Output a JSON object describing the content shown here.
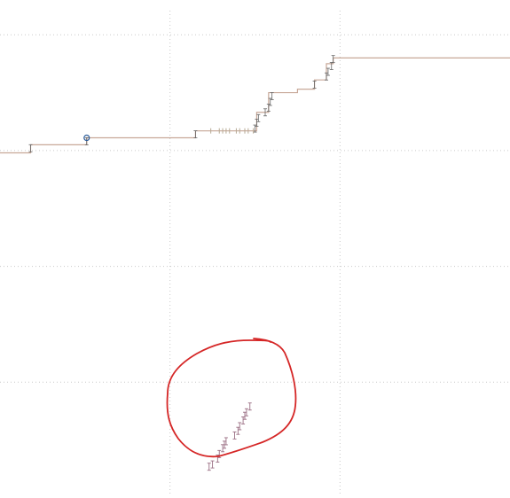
{
  "chart_data": {
    "type": "line",
    "title": "",
    "xlabel": "",
    "ylabel": "",
    "grid": true,
    "legend": "none",
    "x_gridlines": [
      1,
      2
    ],
    "y_gridlines": [
      1,
      2,
      3,
      4
    ],
    "xlim": [
      0,
      3
    ],
    "ylim": [
      0,
      4.3
    ],
    "series": [
      {
        "name": "step-series",
        "color": "#c8a898",
        "step_points": [
          [
            0.0,
            2.98
          ],
          [
            0.18,
            2.98
          ],
          [
            0.18,
            3.05
          ],
          [
            0.51,
            3.05
          ],
          [
            0.51,
            3.11
          ],
          [
            1.15,
            3.11
          ],
          [
            1.15,
            3.17
          ],
          [
            1.51,
            3.17
          ],
          [
            1.51,
            3.33
          ],
          [
            1.58,
            3.33
          ],
          [
            1.58,
            3.5
          ],
          [
            1.75,
            3.5
          ],
          [
            1.75,
            3.53
          ],
          [
            1.85,
            3.53
          ],
          [
            1.85,
            3.61
          ],
          [
            1.92,
            3.61
          ],
          [
            1.92,
            3.75
          ],
          [
            1.96,
            3.75
          ],
          [
            1.96,
            3.8
          ],
          [
            3.0,
            3.8
          ]
        ],
        "error_points": [
          [
            0.18,
            3.02
          ],
          [
            0.51,
            3.08
          ],
          [
            1.15,
            3.14
          ],
          [
            1.5,
            3.19
          ],
          [
            1.51,
            3.24
          ],
          [
            1.52,
            3.28
          ],
          [
            1.56,
            3.33
          ],
          [
            1.58,
            3.37
          ],
          [
            1.59,
            3.42
          ],
          [
            1.6,
            3.47
          ],
          [
            1.85,
            3.57
          ],
          [
            1.92,
            3.64
          ],
          [
            1.93,
            3.68
          ],
          [
            1.95,
            3.73
          ],
          [
            1.96,
            3.79
          ]
        ],
        "marker_point": [
          0.51,
          3.11
        ],
        "rug_x": [
          1.24,
          1.29,
          1.31,
          1.33,
          1.35,
          1.39,
          1.41,
          1.44,
          1.46,
          1.49
        ]
      },
      {
        "name": "scatter-series",
        "color": "#9b6f84",
        "points": [
          [
            1.23,
            0.27
          ],
          [
            1.25,
            0.29
          ],
          [
            1.28,
            0.34
          ],
          [
            1.29,
            0.38
          ],
          [
            1.31,
            0.43
          ],
          [
            1.32,
            0.46
          ],
          [
            1.33,
            0.49
          ],
          [
            1.38,
            0.54
          ],
          [
            1.4,
            0.58
          ],
          [
            1.41,
            0.62
          ],
          [
            1.43,
            0.67
          ],
          [
            1.44,
            0.71
          ],
          [
            1.45,
            0.74
          ],
          [
            1.47,
            0.79
          ]
        ]
      }
    ],
    "annotation": {
      "type": "hand-drawn-circle",
      "color": "#d52626",
      "encloses": "scatter-series"
    }
  }
}
